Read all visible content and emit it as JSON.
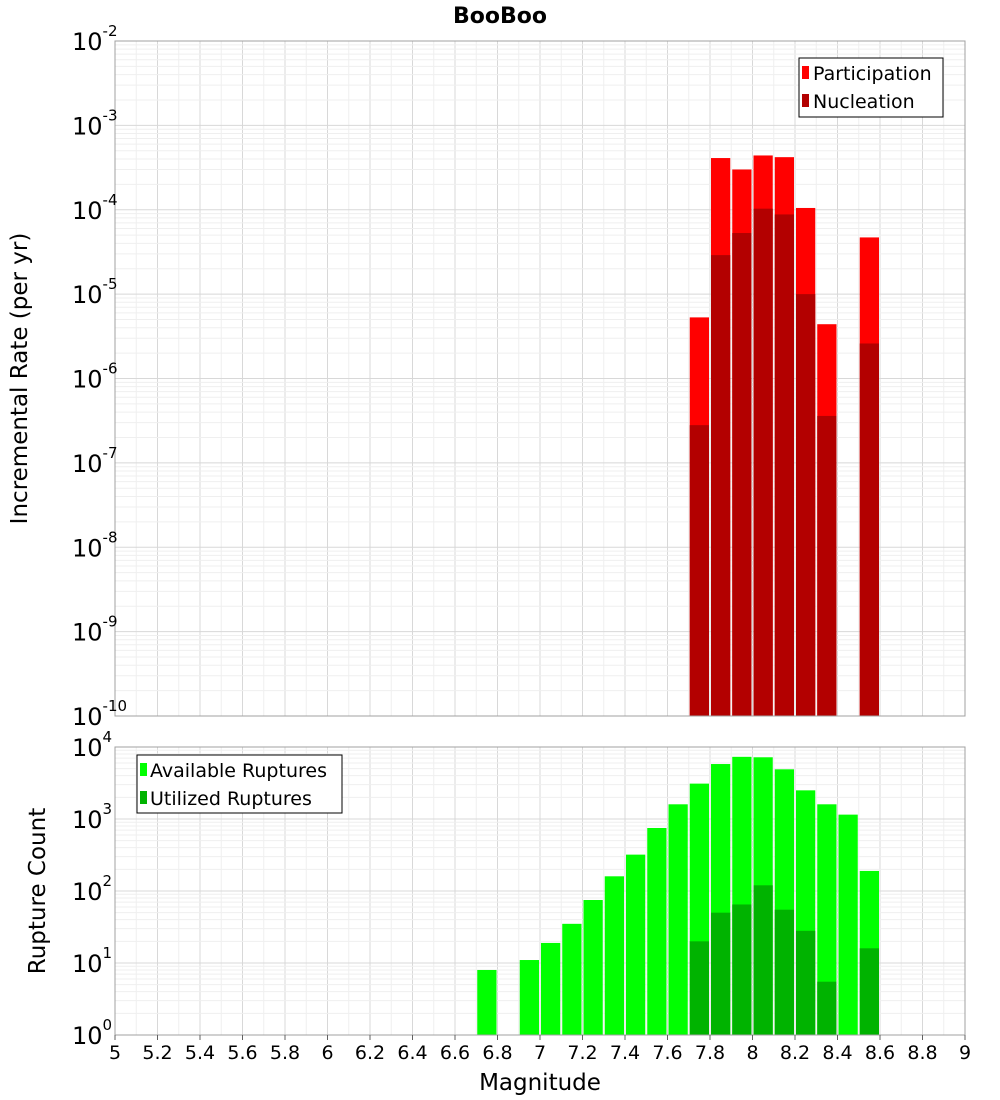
{
  "colors": {
    "participation": "#ff0000",
    "nucleation": "#b30000",
    "available": "#00ff00",
    "utilized": "#00b300",
    "grid_major": "#d8d8d8",
    "grid_minor": "#efefef",
    "frame": "#a0a0a0"
  },
  "chart_data": [
    {
      "type": "bar",
      "title": "BooBoo",
      "xlabel": "Magnitude",
      "ylabel": "Incremental Rate (per yr)",
      "yscale": "log",
      "xlim": [
        5,
        9
      ],
      "ylim": [
        1e-10,
        0.01
      ],
      "ytick_exponents": [
        "-2",
        "-3",
        "-4",
        "-5",
        "-6",
        "-7",
        "-8",
        "-9",
        "-10"
      ],
      "bin_width": 0.1,
      "x": [
        7.75,
        7.85,
        7.95,
        8.05,
        8.15,
        8.25,
        8.35,
        8.55
      ],
      "series": [
        {
          "name": "Participation",
          "color": "#ff0000",
          "values": [
            5.3e-06,
            0.00041,
            0.0003,
            0.00044,
            0.00042,
            0.000105,
            4.4e-06,
            4.7e-05
          ]
        },
        {
          "name": "Nucleation",
          "color": "#b30000",
          "values": [
            2.8e-07,
            2.9e-05,
            5.3e-05,
            0.000103,
            8.8e-05,
            1e-05,
            3.6e-07,
            2.6e-06
          ]
        }
      ],
      "legend": {
        "placement": "top-right",
        "entries": [
          "Participation",
          "Nucleation"
        ]
      },
      "grid": true
    },
    {
      "type": "bar",
      "xlabel": "Magnitude",
      "ylabel": "Rupture Count",
      "yscale": "log",
      "xlim": [
        5,
        9
      ],
      "ylim": [
        1,
        10000
      ],
      "ytick_exponents": [
        "4",
        "3",
        "2",
        "1",
        "0"
      ],
      "xticks": [
        "5",
        "5.2",
        "5.4",
        "5.6",
        "5.8",
        "6",
        "6.2",
        "6.4",
        "6.6",
        "6.8",
        "7",
        "7.2",
        "7.4",
        "7.6",
        "7.8",
        "8",
        "8.2",
        "8.4",
        "8.6",
        "8.8",
        "9"
      ],
      "bin_width": 0.1,
      "x": [
        6.75,
        6.95,
        7.05,
        7.15,
        7.25,
        7.35,
        7.45,
        7.55,
        7.65,
        7.75,
        7.85,
        7.95,
        8.05,
        8.15,
        8.25,
        8.35,
        8.45,
        8.55
      ],
      "series": [
        {
          "name": "Available Ruptures",
          "color": "#00ff00",
          "values": [
            8,
            11,
            19,
            35,
            75,
            160,
            320,
            750,
            1600,
            3100,
            5800,
            7300,
            7200,
            4900,
            2500,
            1600,
            1150,
            190
          ]
        },
        {
          "name": "Utilized Ruptures",
          "color": "#00b300",
          "values": [
            0,
            0,
            0,
            0,
            0,
            0,
            0,
            1,
            1,
            20,
            50,
            65,
            120,
            55,
            28,
            5.5,
            0,
            16
          ]
        }
      ],
      "legend": {
        "placement": "top-left",
        "entries": [
          "Available Ruptures",
          "Utilized Ruptures"
        ]
      },
      "grid": true
    }
  ]
}
